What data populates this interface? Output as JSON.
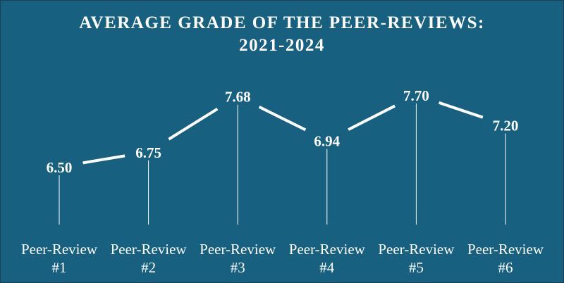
{
  "title": {
    "line1": "AVERAGE GRADE OF THE PEER-REVIEWS:",
    "line2": "2021-2024"
  },
  "colors": {
    "background": "#17607f",
    "line": "#ffffff",
    "text": "#ffffff"
  },
  "chart_data": {
    "type": "line",
    "title": "AVERAGE GRADE OF THE PEER-REVIEWS: 2021-2024",
    "categories": [
      [
        "Peer-Review",
        "#1"
      ],
      [
        "Peer-Review",
        "#2"
      ],
      [
        "Peer-Review",
        "#3"
      ],
      [
        "Peer-Review",
        "#4"
      ],
      [
        "Peer-Review",
        "#5"
      ],
      [
        "Peer-Review",
        "#6"
      ]
    ],
    "values": [
      6.5,
      6.75,
      7.68,
      6.94,
      7.7,
      7.2
    ],
    "value_labels": [
      "6.50",
      "6.75",
      "7.68",
      "6.94",
      "7.70",
      "7.20"
    ],
    "xlabel": "",
    "ylabel": "",
    "grid": false,
    "legend": "none"
  }
}
